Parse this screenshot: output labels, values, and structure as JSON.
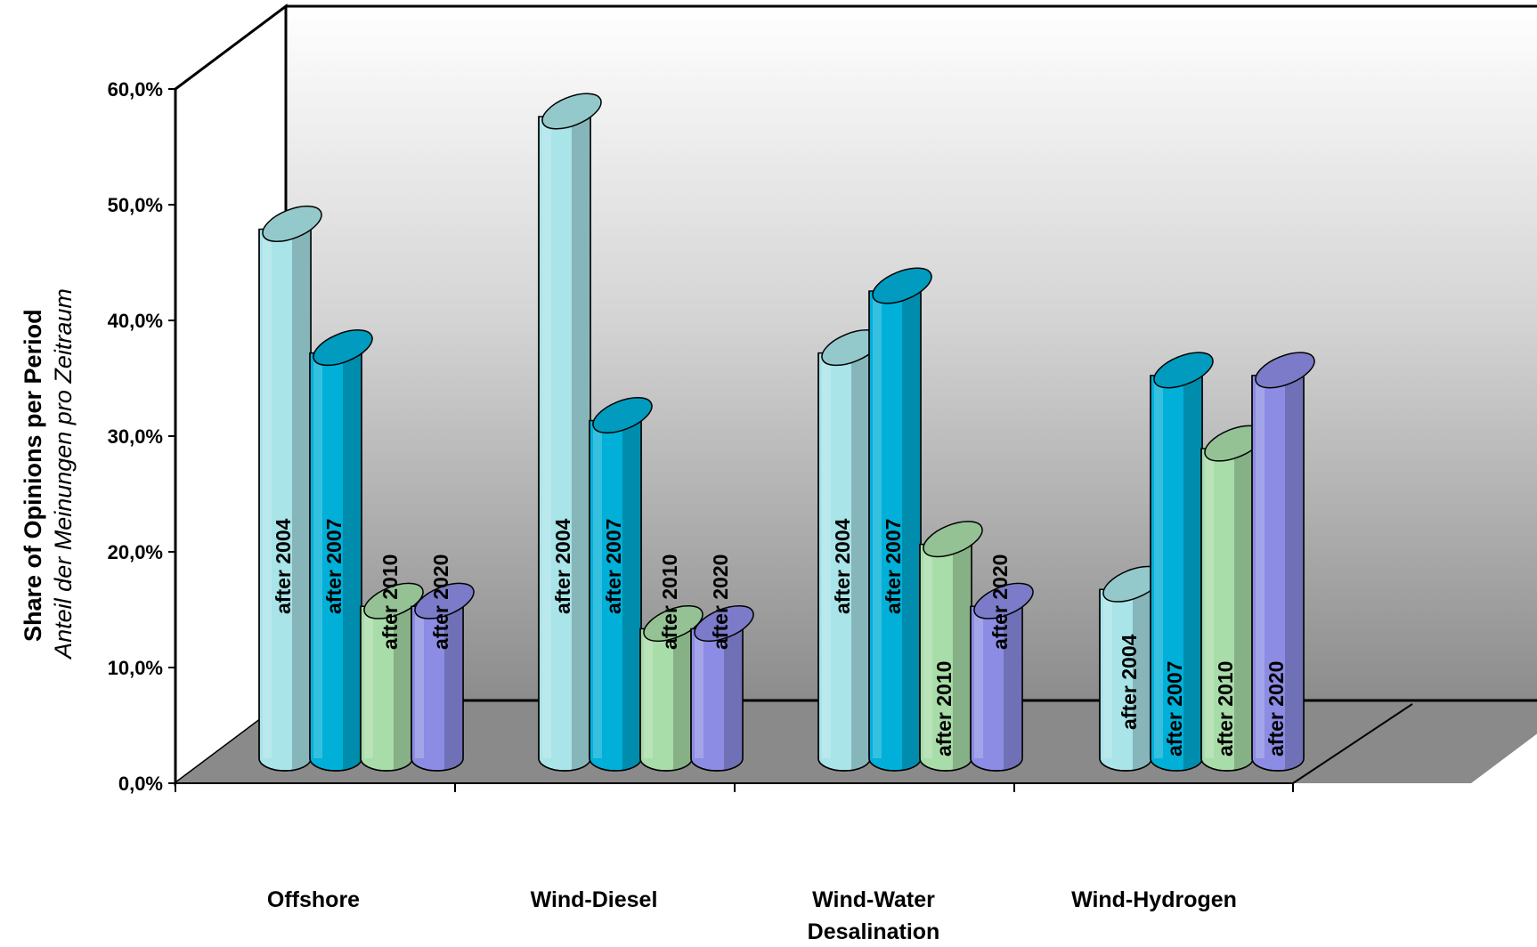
{
  "chart_data": {
    "type": "bar",
    "ylabel": "Share of Opinions per Period",
    "ylabel_sub": "Anteil der Meinungen pro Zeitraum",
    "ylim": [
      0,
      60
    ],
    "y_ticks": [
      "0,0%",
      "10,0%",
      "20,0%",
      "30,0%",
      "40,0%",
      "50,0%",
      "60,0%"
    ],
    "categories": [
      "Offshore",
      "Wind-Diesel",
      "Wind-Water Desalination",
      "Wind-Hydrogen"
    ],
    "category_lines": [
      [
        "Offshore"
      ],
      [
        "Wind-Diesel"
      ],
      [
        "Wind-Water",
        "Desalination"
      ],
      [
        "Wind-Hydrogen"
      ]
    ],
    "series": [
      {
        "name": "after 2004",
        "values": [
          47.0,
          57.0,
          36.0,
          15.0
        ]
      },
      {
        "name": "after 2007",
        "values": [
          36.0,
          30.0,
          41.5,
          34.0
        ]
      },
      {
        "name": "after 2010",
        "values": [
          13.5,
          11.5,
          19.0,
          27.5
        ]
      },
      {
        "name": "after 2020",
        "values": [
          13.5,
          11.5,
          13.5,
          34.0
        ]
      }
    ],
    "colors": [
      "#a8e4e8",
      "#00b0d8",
      "#a8dca8",
      "#8c8ce4"
    ],
    "grid": false,
    "legend": "none",
    "style": "3d-cylinder"
  }
}
